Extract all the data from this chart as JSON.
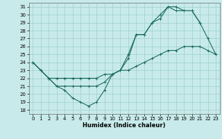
{
  "xlabel": "Humidex (Indice chaleur)",
  "xlim": [
    -0.5,
    23.5
  ],
  "ylim": [
    17.5,
    31.5
  ],
  "xticks": [
    0,
    1,
    2,
    3,
    4,
    5,
    6,
    7,
    8,
    9,
    10,
    11,
    12,
    13,
    14,
    15,
    16,
    17,
    18,
    19,
    20,
    21,
    22,
    23
  ],
  "yticks": [
    18,
    19,
    20,
    21,
    22,
    23,
    24,
    25,
    26,
    27,
    28,
    29,
    30,
    31
  ],
  "bg_color": "#c8eaea",
  "line_color": "#1a6b5e",
  "grid_color": "#9dcece",
  "line1": {
    "x": [
      0,
      1,
      2,
      3,
      4,
      5,
      6,
      7,
      8,
      9,
      10,
      11,
      12,
      13,
      14,
      15,
      16,
      17,
      18,
      19,
      20,
      21,
      22,
      23
    ],
    "y": [
      24,
      23,
      22,
      21,
      20.5,
      19.5,
      19.0,
      18.5,
      19.0,
      20.5,
      22.5,
      23.0,
      24.5,
      27.5,
      27.5,
      29.0,
      29.5,
      31.0,
      31.0,
      30.5,
      30.5,
      29.0,
      27.0,
      25.0
    ]
  },
  "line2": {
    "x": [
      0,
      1,
      2,
      3,
      4,
      5,
      6,
      7,
      8,
      9,
      10,
      11,
      12,
      13,
      14,
      15,
      16,
      17,
      18,
      19,
      20,
      21
    ],
    "y": [
      24,
      23.0,
      22.0,
      21.0,
      21.0,
      21.0,
      21.0,
      21.0,
      21.0,
      21.5,
      22.5,
      23.0,
      25.0,
      27.5,
      27.5,
      29.0,
      30.0,
      31.0,
      30.5,
      30.5,
      30.5,
      29.0
    ]
  },
  "line3": {
    "x": [
      0,
      1,
      2,
      3,
      4,
      5,
      6,
      7,
      8,
      9,
      10,
      11,
      12,
      13,
      14,
      15,
      16,
      17,
      18,
      19,
      20,
      21,
      22,
      23
    ],
    "y": [
      24,
      23.0,
      22.0,
      22.0,
      22.0,
      22.0,
      22.0,
      22.0,
      22.0,
      22.5,
      22.5,
      23.0,
      23.0,
      23.5,
      24.0,
      24.5,
      25.0,
      25.5,
      25.5,
      26.0,
      26.0,
      26.0,
      25.5,
      25.0
    ]
  }
}
